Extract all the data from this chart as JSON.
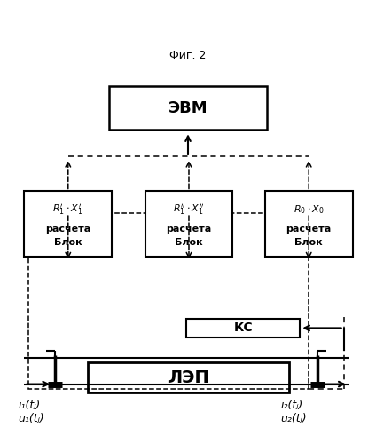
{
  "bg_color": "#ffffff",
  "fig_width": 4.24,
  "fig_height": 5.0,
  "dpi": 100,
  "lep_label": "ЛЭП",
  "ks_label": "КС",
  "evm_label": "ЭВМ",
  "caption": "Фиг. 2",
  "u1_label": "u₁(tⱼ)",
  "i1_label": "i₁(tⱼ)",
  "u2_label": "u₂(tⱼ)",
  "i2_label": "i₂(tⱼ)",
  "block1_l3": "R₁·X₁",
  "block2_l3": "R₁·X₁",
  "block3_l3": "R₀·X₀"
}
